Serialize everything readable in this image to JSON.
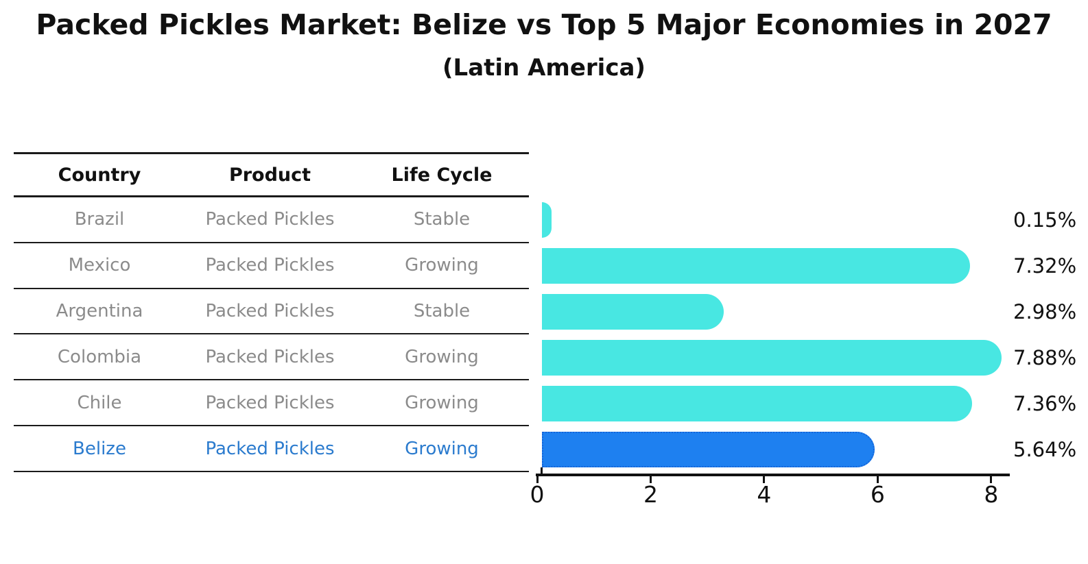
{
  "title": "Packed Pickles Market: Belize vs Top 5 Major Economies in 2027",
  "subtitle": "(Latin America)",
  "table": {
    "headers": [
      "Country",
      "Product",
      "Life Cycle"
    ],
    "rows": [
      {
        "country": "Brazil",
        "product": "Packed Pickles",
        "life_cycle": "Stable",
        "highlighted": false
      },
      {
        "country": "Mexico",
        "product": "Packed Pickles",
        "life_cycle": "Growing",
        "highlighted": false
      },
      {
        "country": "Argentina",
        "product": "Packed Pickles",
        "life_cycle": "Stable",
        "highlighted": false
      },
      {
        "country": "Colombia",
        "product": "Packed Pickles",
        "life_cycle": "Growing",
        "highlighted": false
      },
      {
        "country": "Chile",
        "product": "Packed Pickles",
        "life_cycle": "Growing",
        "highlighted": false
      },
      {
        "country": "Belize",
        "product": "Packed Pickles",
        "life_cycle": "Growing",
        "highlighted": true
      }
    ]
  },
  "chart_data": {
    "type": "bar",
    "orientation": "horizontal",
    "title": "Packed Pickles Market: Belize vs Top 5 Major Economies in 2027",
    "subtitle": "(Latin America)",
    "categories": [
      "Brazil",
      "Mexico",
      "Argentina",
      "Colombia",
      "Chile",
      "Belize"
    ],
    "values": [
      0.15,
      7.32,
      2.98,
      7.88,
      7.36,
      5.64
    ],
    "value_labels": [
      "0.15%",
      "7.32%",
      "2.98%",
      "7.88%",
      "7.36%",
      "5.64%"
    ],
    "x_ticks": [
      "0",
      "2",
      "4",
      "6",
      "8"
    ],
    "xlim": [
      0,
      8.34
    ],
    "grid": false,
    "legend": false,
    "highlight_index": 5,
    "bar_color": "#48E7E2",
    "highlight_bar_color": "#1E80F0",
    "highlight_border_color": "#1565D9",
    "highlight_text_color": "#2B7BCE",
    "table_text_color": "#8B8B8B",
    "axis_color": "#111111"
  }
}
